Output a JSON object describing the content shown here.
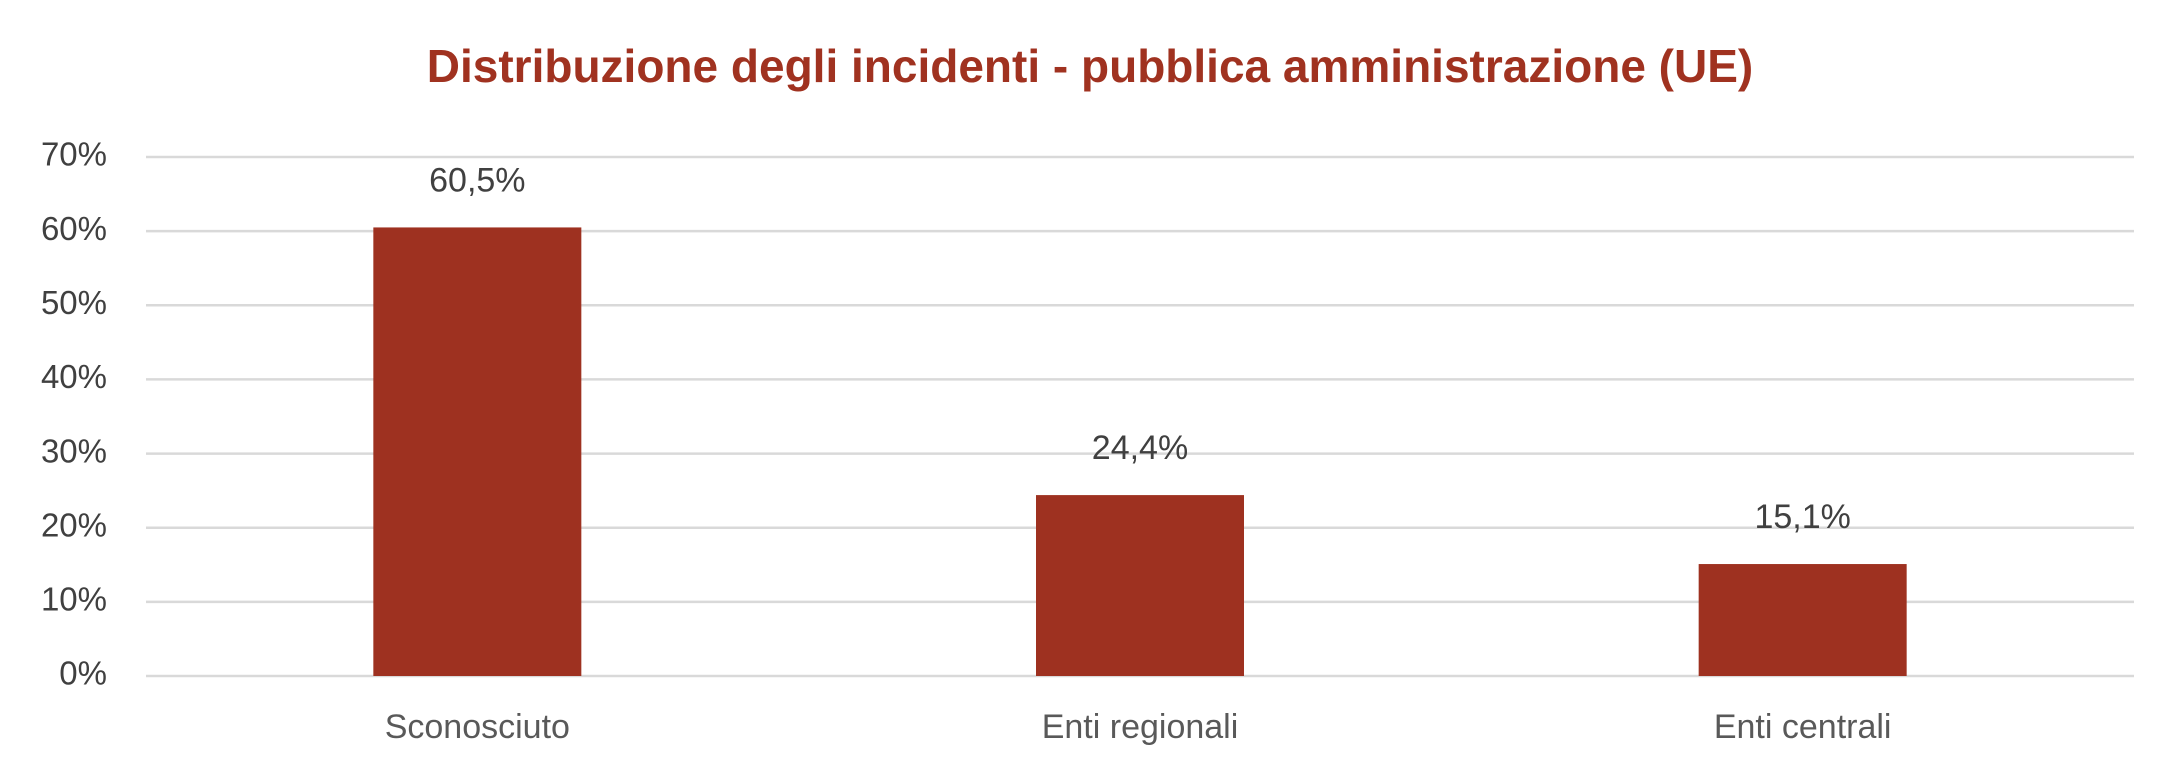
{
  "chart_data": {
    "type": "bar",
    "title": "Distribuzione degli incidenti - pubblica amministrazione (UE)",
    "categories": [
      "Sconosciuto",
      "Enti regionali",
      "Enti centrali"
    ],
    "values": [
      60.5,
      24.4,
      15.1
    ],
    "value_labels": [
      "60,5%",
      "24,4%",
      "15,1%"
    ],
    "color": "#9e3120",
    "ylim": [
      0,
      70
    ],
    "yticks": [
      {
        "value": 0,
        "label": "0%"
      },
      {
        "value": 10,
        "label": "10%"
      },
      {
        "value": 20,
        "label": "20%"
      },
      {
        "value": 30,
        "label": "30%"
      },
      {
        "value": 40,
        "label": "40%"
      },
      {
        "value": 50,
        "label": "50%"
      },
      {
        "value": 60,
        "label": "60%"
      },
      {
        "value": 70,
        "label": "70%"
      }
    ],
    "grid": true
  }
}
